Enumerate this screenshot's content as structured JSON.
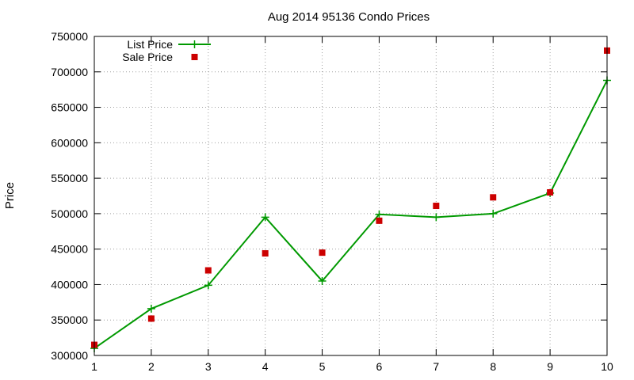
{
  "chart_data": {
    "type": "line",
    "title": "Aug 2014 95136 Condo Prices",
    "xlabel": "",
    "ylabel": "Price",
    "x": [
      1,
      2,
      3,
      4,
      5,
      6,
      7,
      8,
      9,
      10
    ],
    "xlim": [
      1,
      10
    ],
    "ylim": [
      300000,
      750000
    ],
    "xticks": [
      1,
      2,
      3,
      4,
      5,
      6,
      7,
      8,
      9,
      10
    ],
    "yticks": [
      300000,
      350000,
      400000,
      450000,
      500000,
      550000,
      600000,
      650000,
      700000,
      750000
    ],
    "grid": true,
    "legend_position": "top-left",
    "series": [
      {
        "name": "List Price",
        "style": "line-points",
        "marker": "plus",
        "color": "#009900",
        "values": [
          310000,
          366000,
          399000,
          495000,
          405000,
          499000,
          495000,
          500000,
          529000,
          688000
        ]
      },
      {
        "name": "Sale Price",
        "style": "points",
        "marker": "square",
        "color": "#cc0000",
        "values": [
          315000,
          352000,
          420000,
          444000,
          445000,
          490000,
          511000,
          523000,
          530000,
          730000
        ]
      }
    ]
  }
}
